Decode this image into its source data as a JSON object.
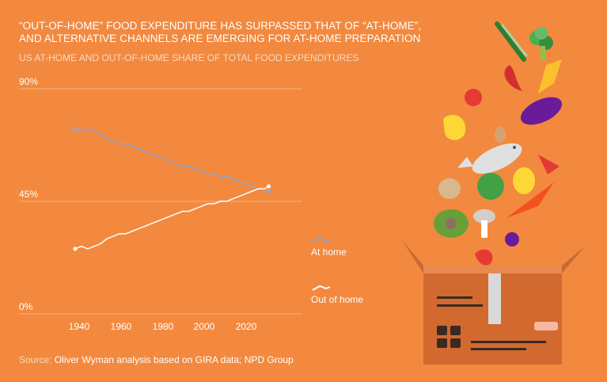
{
  "header": {
    "title_line1": "“OUT-OF-HOME” FOOD EXPENDITURE HAS SURPASSED THAT OF “AT-HOME”,",
    "title_line2": "AND ALTERNATIVE CHANNELS ARE EMERGING FOR AT-HOME PREPARATION",
    "subtitle": "US AT-HOME AND OUT-OF-HOME SHARE OF TOTAL FOOD EXPENDITURES"
  },
  "source": {
    "label": "Source:",
    "text": "Oliver Wyman analysis based on GIRA data; NPD Group"
  },
  "legend": {
    "at_home": "At home",
    "out_of_home": "Out of home"
  },
  "colors": {
    "background": "#F2893F",
    "at_home_line": "#8FA6D6",
    "out_of_home_line": "#FFFFFF",
    "gridline": "#F7B27E"
  },
  "chart_data": {
    "type": "line",
    "title": "US AT-HOME AND OUT-OF-HOME SHARE OF TOTAL FOOD EXPENDITURES",
    "xlabel": "",
    "ylabel": "",
    "xlim": [
      1930,
      2026
    ],
    "ylim": [
      0,
      90
    ],
    "yticks": [
      "0%",
      "45%",
      "90%"
    ],
    "xticks": [
      "1940",
      "1960",
      "1980",
      "2000",
      "2020"
    ],
    "x": [
      1929,
      1932,
      1935,
      1938,
      1941,
      1944,
      1947,
      1950,
      1953,
      1956,
      1959,
      1962,
      1965,
      1968,
      1971,
      1974,
      1977,
      1980,
      1983,
      1986,
      1989,
      1992,
      1995,
      1998,
      2001,
      2004,
      2007,
      2010,
      2013,
      2016,
      2019,
      2021
    ],
    "series": [
      {
        "name": "At home",
        "values": [
          74,
          73,
          74,
          73,
          72,
          70,
          69,
          68,
          68,
          67,
          66,
          65,
          64,
          63,
          62,
          61,
          60,
          59,
          59,
          58,
          57,
          56,
          56,
          55,
          55,
          54,
          53,
          52,
          51,
          50,
          50,
          49
        ]
      },
      {
        "name": "Out of home",
        "values": [
          26,
          27,
          26,
          27,
          28,
          30,
          31,
          32,
          32,
          33,
          34,
          35,
          36,
          37,
          38,
          39,
          40,
          41,
          41,
          42,
          43,
          44,
          44,
          45,
          45,
          46,
          47,
          48,
          49,
          50,
          50,
          51
        ]
      }
    ]
  }
}
